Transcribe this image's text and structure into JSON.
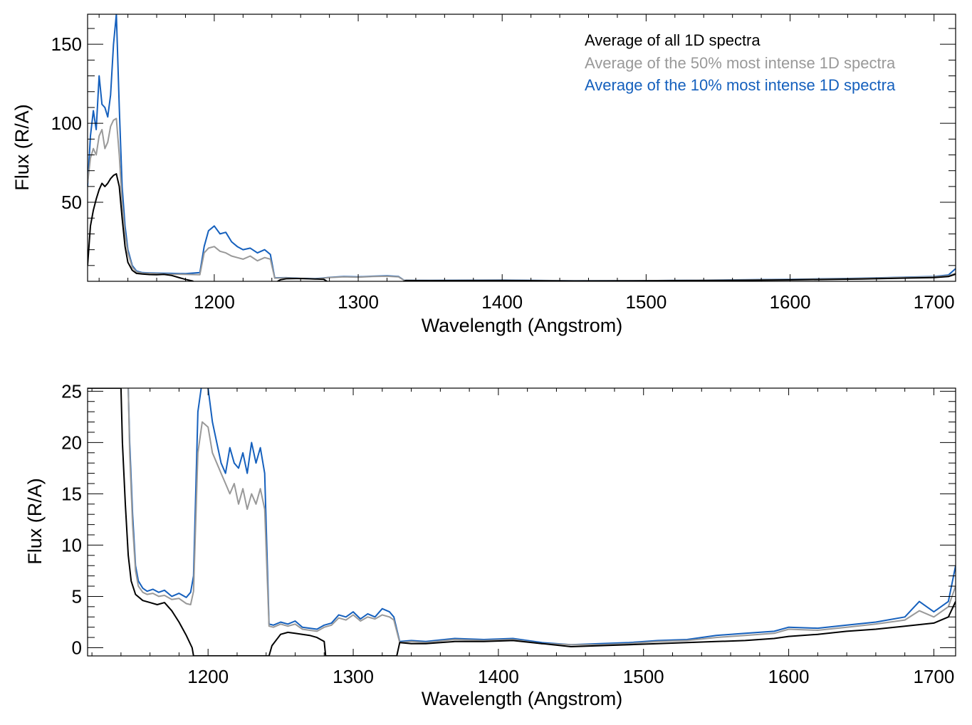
{
  "chart_data": [
    {
      "type": "line",
      "xlabel": "Wavelength (Angstrom)",
      "ylabel": "Flux (R/A)",
      "xlim": [
        1112,
        1715
      ],
      "ylim": [
        0,
        169
      ],
      "xticks": [
        1200,
        1300,
        1400,
        1500,
        1600,
        1700
      ],
      "xtick_labels": [
        "1200",
        "1300",
        "1400",
        "1500",
        "1600",
        "1700"
      ],
      "yticks": [
        50,
        100,
        150
      ],
      "ytick_labels": [
        "50",
        "100",
        "150"
      ],
      "legend_position": "top-right",
      "legend": [
        {
          "label": "Average of all 1D spectra",
          "color": "#000000"
        },
        {
          "label": "Average of the 50% most intense 1D spectra",
          "color": "#999999"
        },
        {
          "label": "Average of the 10% most intense 1D spectra",
          "color": "#1560bd"
        }
      ],
      "series": [
        {
          "name": "Average of the 10% most intense 1D spectra",
          "color": "#1560bd",
          "x": [
            1112,
            1114,
            1116,
            1118,
            1120,
            1122,
            1124,
            1126,
            1128,
            1130,
            1132,
            1134,
            1136,
            1138,
            1140,
            1143,
            1146,
            1150,
            1155,
            1160,
            1170,
            1180,
            1190,
            1193,
            1196,
            1200,
            1204,
            1208,
            1212,
            1216,
            1220,
            1225,
            1230,
            1235,
            1239,
            1242,
            1250,
            1260,
            1270,
            1280,
            1290,
            1300,
            1310,
            1320,
            1328,
            1332,
            1350,
            1400,
            1450,
            1500,
            1550,
            1600,
            1650,
            1700,
            1710,
            1715
          ],
          "y": [
            60,
            92,
            108,
            96,
            130,
            112,
            110,
            104,
            118,
            150,
            169,
            110,
            60,
            35,
            20,
            10,
            6.5,
            5.5,
            5.3,
            5.2,
            5.0,
            4.8,
            5.5,
            22,
            32,
            35,
            30,
            31,
            25,
            22,
            20,
            21,
            18,
            20,
            17,
            2.2,
            2.3,
            1.8,
            1.6,
            2.5,
            3.0,
            2.8,
            3.2,
            3.5,
            3.0,
            0.6,
            0.6,
            0.7,
            0.3,
            0.4,
            0.8,
            1.2,
            2.0,
            3.0,
            4.0,
            8.0
          ]
        },
        {
          "name": "Average of the 50% most intense 1D spectra",
          "color": "#999999",
          "x": [
            1112,
            1114,
            1116,
            1118,
            1120,
            1122,
            1124,
            1126,
            1128,
            1130,
            1132,
            1134,
            1136,
            1138,
            1140,
            1143,
            1146,
            1150,
            1155,
            1160,
            1170,
            1180,
            1190,
            1193,
            1196,
            1200,
            1204,
            1208,
            1212,
            1216,
            1220,
            1225,
            1230,
            1235,
            1239,
            1242,
            1250,
            1260,
            1270,
            1280,
            1290,
            1300,
            1310,
            1320,
            1328,
            1332,
            1350,
            1400,
            1450,
            1500,
            1550,
            1600,
            1650,
            1700,
            1710,
            1715
          ],
          "y": [
            62,
            78,
            84,
            80,
            92,
            96,
            84,
            88,
            98,
            102,
            103,
            80,
            50,
            30,
            18,
            9,
            6,
            5.2,
            5.0,
            4.8,
            4.5,
            4.4,
            4.2,
            18,
            21,
            22,
            19,
            18,
            16,
            15,
            14,
            16,
            13,
            15,
            14,
            2.0,
            2.2,
            1.7,
            1.5,
            2.4,
            2.8,
            2.6,
            3.0,
            3.2,
            2.8,
            0.5,
            0.5,
            0.6,
            0.3,
            0.4,
            0.7,
            1.1,
            1.8,
            2.8,
            3.5,
            5.0
          ]
        },
        {
          "name": "Average of all 1D spectra",
          "color": "#000000",
          "x": [
            1112,
            1114,
            1116,
            1118,
            1120,
            1122,
            1124,
            1126,
            1128,
            1130,
            1132,
            1134,
            1136,
            1138,
            1140,
            1143,
            1146,
            1150,
            1155,
            1160,
            1165,
            1170,
            1175,
            1180,
            1185,
            1188,
            1242,
            1246,
            1250,
            1260,
            1270,
            1276,
            1280,
            1329,
            1333,
            1350,
            1400,
            1450,
            1500,
            1550,
            1600,
            1650,
            1700,
            1710,
            1715
          ],
          "y": [
            10,
            35,
            45,
            52,
            58,
            62,
            60,
            62,
            65,
            67,
            68,
            60,
            40,
            22,
            12,
            7,
            5,
            4.6,
            4.3,
            4.2,
            4.4,
            3.8,
            2.5,
            1.2,
            0.2,
            -1.5,
            -1.0,
            1.0,
            1.6,
            1.8,
            1.5,
            1.3,
            -1.0,
            -1.0,
            0.5,
            0.4,
            0.5,
            0.2,
            0.3,
            0.5,
            0.9,
            1.5,
            2.4,
            3.0,
            4.5
          ]
        }
      ]
    },
    {
      "type": "line",
      "xlabel": "Wavelength (Angstrom)",
      "ylabel": "Flux (R/A)",
      "xlim": [
        1117,
        1715
      ],
      "ylim": [
        -0.8,
        25.3
      ],
      "xticks": [
        1200,
        1300,
        1400,
        1500,
        1600,
        1700
      ],
      "xtick_labels": [
        "1200",
        "1300",
        "1400",
        "1500",
        "1600",
        "1700"
      ],
      "yticks": [
        0,
        5,
        10,
        15,
        20,
        25
      ],
      "ytick_labels": [
        "0",
        "5",
        "10",
        "15",
        "20",
        "25"
      ],
      "series": [
        {
          "name": "Average of the 10% most intense 1D spectra",
          "color": "#1560bd",
          "x": [
            1145,
            1146,
            1148,
            1150,
            1152,
            1155,
            1158,
            1162,
            1166,
            1170,
            1175,
            1180,
            1185,
            1188,
            1190,
            1193,
            1196,
            1200,
            1203,
            1206,
            1209,
            1212,
            1215,
            1218,
            1221,
            1224,
            1227,
            1230,
            1233,
            1236,
            1239,
            1242,
            1245,
            1250,
            1255,
            1260,
            1265,
            1270,
            1275,
            1280,
            1285,
            1290,
            1295,
            1300,
            1305,
            1310,
            1315,
            1320,
            1325,
            1328,
            1332,
            1340,
            1350,
            1370,
            1390,
            1410,
            1430,
            1450,
            1470,
            1490,
            1510,
            1530,
            1550,
            1570,
            1590,
            1600,
            1620,
            1640,
            1660,
            1680,
            1690,
            1700,
            1710,
            1715
          ],
          "y": [
            25.3,
            20,
            13,
            8,
            6.5,
            5.8,
            5.5,
            5.7,
            5.4,
            5.6,
            5.0,
            5.3,
            4.9,
            5.4,
            7.0,
            23,
            26,
            25.3,
            22,
            20,
            18,
            17,
            19.5,
            18,
            17.5,
            19,
            17,
            20,
            18,
            19.5,
            17,
            2.3,
            2.2,
            2.5,
            2.3,
            2.6,
            2.0,
            1.9,
            1.8,
            2.2,
            2.4,
            3.2,
            3.0,
            3.5,
            2.8,
            3.3,
            3.0,
            3.8,
            3.5,
            3.0,
            0.6,
            0.7,
            0.6,
            0.9,
            0.8,
            0.9,
            0.5,
            0.3,
            0.4,
            0.5,
            0.7,
            0.8,
            1.2,
            1.4,
            1.6,
            2.0,
            1.9,
            2.2,
            2.5,
            3.0,
            4.5,
            3.5,
            4.5,
            8.0
          ]
        },
        {
          "name": "Average of the 50% most intense 1D spectra",
          "color": "#999999",
          "x": [
            1145,
            1146,
            1148,
            1150,
            1152,
            1155,
            1158,
            1162,
            1166,
            1170,
            1175,
            1180,
            1185,
            1188,
            1190,
            1193,
            1196,
            1200,
            1203,
            1206,
            1209,
            1212,
            1215,
            1218,
            1221,
            1224,
            1227,
            1230,
            1233,
            1236,
            1239,
            1242,
            1245,
            1250,
            1255,
            1260,
            1265,
            1270,
            1275,
            1280,
            1285,
            1290,
            1295,
            1300,
            1305,
            1310,
            1315,
            1320,
            1325,
            1328,
            1332,
            1340,
            1350,
            1370,
            1390,
            1410,
            1430,
            1450,
            1470,
            1490,
            1510,
            1530,
            1550,
            1570,
            1590,
            1600,
            1620,
            1640,
            1660,
            1680,
            1690,
            1700,
            1710,
            1715
          ],
          "y": [
            25.3,
            19,
            12,
            7.5,
            6.0,
            5.4,
            5.2,
            5.3,
            5.0,
            5.1,
            4.7,
            4.8,
            4.3,
            4.2,
            5.5,
            19,
            22,
            21.5,
            19,
            18,
            17,
            16,
            15,
            16,
            14,
            15.5,
            13.5,
            15,
            14,
            15.5,
            13.5,
            2.1,
            2.0,
            2.3,
            2.1,
            2.3,
            1.8,
            1.7,
            1.6,
            2.0,
            2.2,
            2.9,
            2.7,
            3.2,
            2.6,
            3.0,
            2.8,
            3.2,
            3.0,
            2.7,
            0.5,
            0.6,
            0.5,
            0.8,
            0.7,
            0.8,
            0.4,
            0.3,
            0.3,
            0.4,
            0.6,
            0.7,
            1.0,
            1.2,
            1.4,
            1.8,
            1.7,
            2.0,
            2.3,
            2.7,
            3.6,
            3.0,
            4.0,
            6.0
          ]
        },
        {
          "name": "Average of all 1D spectra",
          "color": "#000000",
          "x": [
            1117,
            1140,
            1141,
            1143,
            1145,
            1147,
            1150,
            1155,
            1160,
            1165,
            1170,
            1175,
            1180,
            1185,
            1189,
            1190,
            1242,
            1244,
            1250,
            1255,
            1260,
            1265,
            1270,
            1275,
            1280,
            1281,
            1330,
            1332,
            1340,
            1350,
            1370,
            1390,
            1410,
            1430,
            1450,
            1470,
            1490,
            1510,
            1530,
            1550,
            1570,
            1590,
            1600,
            1620,
            1640,
            1660,
            1680,
            1700,
            1710,
            1715
          ],
          "y": [
            25.3,
            25.3,
            20,
            14,
            9,
            6.5,
            5.2,
            4.6,
            4.4,
            4.2,
            4.4,
            3.6,
            2.5,
            1.2,
            0.0,
            -0.8,
            -0.8,
            0.2,
            1.3,
            1.5,
            1.4,
            1.3,
            1.2,
            1.0,
            0.6,
            -0.8,
            -0.8,
            0.5,
            0.4,
            0.4,
            0.6,
            0.6,
            0.7,
            0.4,
            0.1,
            0.2,
            0.3,
            0.4,
            0.5,
            0.6,
            0.7,
            0.9,
            1.1,
            1.3,
            1.6,
            1.8,
            2.1,
            2.4,
            3.0,
            4.5
          ]
        }
      ]
    }
  ]
}
